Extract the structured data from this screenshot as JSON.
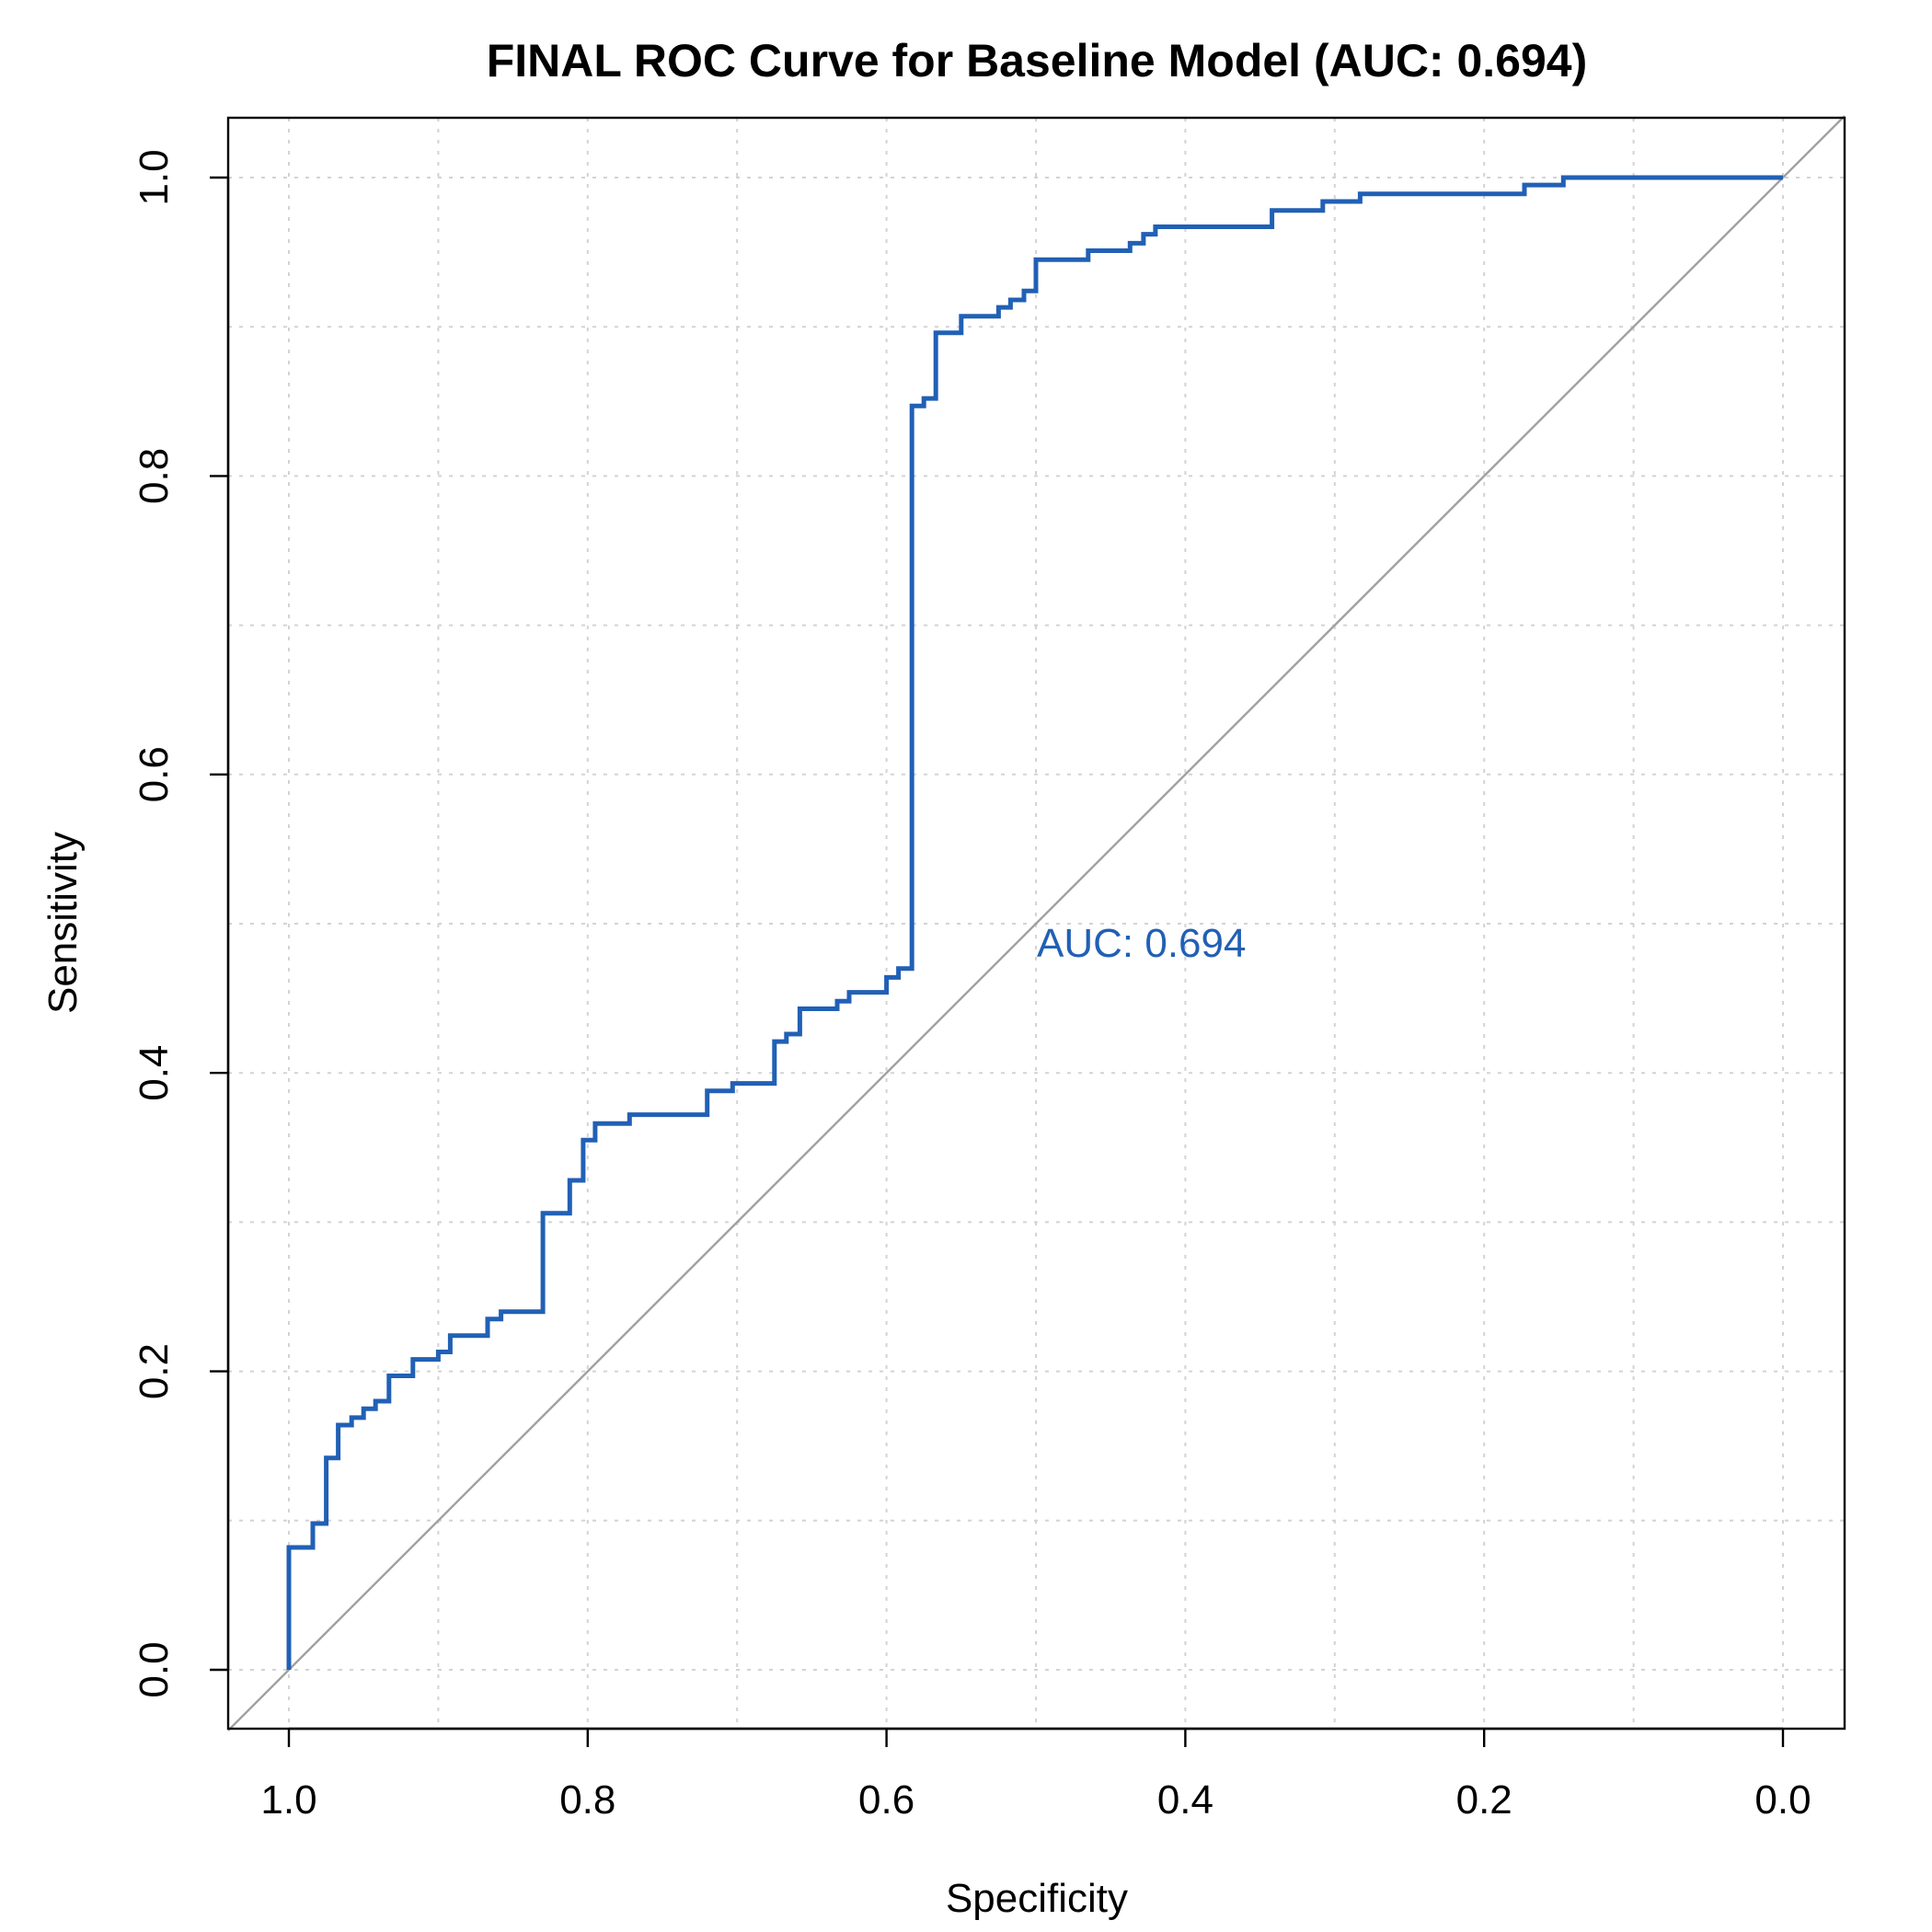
{
  "chart_data": {
    "type": "line",
    "title": "FINAL ROC Curve for Baseline Model (AUC: 0.694)",
    "xlabel": "Specificity",
    "ylabel": "Sensitivity",
    "xlim": [
      1.0,
      0.0
    ],
    "ylim": [
      0.0,
      1.0
    ],
    "x_reversed": true,
    "grid": true,
    "x_ticks": [
      "1.0",
      "0.8",
      "0.6",
      "0.4",
      "0.2",
      "0.0"
    ],
    "y_ticks": [
      "0.0",
      "0.2",
      "0.4",
      "0.6",
      "0.8",
      "1.0"
    ],
    "reference_line": "diagonal",
    "annotation": "AUC: 0.694",
    "colors": {
      "curve": "#2160b5",
      "diagonal": "#a0a0a0",
      "grid": "#d3d3d3"
    },
    "series": [
      {
        "points": [
          [
            1.0,
            0.0
          ],
          [
            1.0,
            0.082
          ],
          [
            0.984,
            0.082
          ],
          [
            0.984,
            0.098
          ],
          [
            0.975,
            0.098
          ],
          [
            0.975,
            0.142
          ],
          [
            0.967,
            0.142
          ],
          [
            0.967,
            0.164
          ],
          [
            0.958,
            0.164
          ],
          [
            0.958,
            0.169
          ],
          [
            0.95,
            0.169
          ],
          [
            0.95,
            0.175
          ],
          [
            0.942,
            0.175
          ],
          [
            0.942,
            0.18
          ],
          [
            0.933,
            0.18
          ],
          [
            0.933,
            0.197
          ],
          [
            0.917,
            0.197
          ],
          [
            0.917,
            0.208
          ],
          [
            0.9,
            0.208
          ],
          [
            0.9,
            0.213
          ],
          [
            0.892,
            0.213
          ],
          [
            0.892,
            0.224
          ],
          [
            0.867,
            0.224
          ],
          [
            0.867,
            0.235
          ],
          [
            0.858,
            0.235
          ],
          [
            0.858,
            0.24
          ],
          [
            0.83,
            0.24
          ],
          [
            0.83,
            0.306
          ],
          [
            0.812,
            0.306
          ],
          [
            0.812,
            0.328
          ],
          [
            0.803,
            0.328
          ],
          [
            0.803,
            0.355
          ],
          [
            0.795,
            0.355
          ],
          [
            0.795,
            0.366
          ],
          [
            0.772,
            0.366
          ],
          [
            0.772,
            0.372
          ],
          [
            0.72,
            0.372
          ],
          [
            0.72,
            0.388
          ],
          [
            0.703,
            0.388
          ],
          [
            0.703,
            0.393
          ],
          [
            0.675,
            0.393
          ],
          [
            0.675,
            0.421
          ],
          [
            0.667,
            0.421
          ],
          [
            0.667,
            0.426
          ],
          [
            0.658,
            0.426
          ],
          [
            0.658,
            0.443
          ],
          [
            0.633,
            0.443
          ],
          [
            0.633,
            0.448
          ],
          [
            0.625,
            0.448
          ],
          [
            0.625,
            0.454
          ],
          [
            0.6,
            0.454
          ],
          [
            0.6,
            0.464
          ],
          [
            0.592,
            0.464
          ],
          [
            0.592,
            0.47
          ],
          [
            0.583,
            0.47
          ],
          [
            0.583,
            0.847
          ],
          [
            0.575,
            0.847
          ],
          [
            0.575,
            0.852
          ],
          [
            0.567,
            0.852
          ],
          [
            0.567,
            0.896
          ],
          [
            0.55,
            0.896
          ],
          [
            0.55,
            0.907
          ],
          [
            0.525,
            0.907
          ],
          [
            0.525,
            0.913
          ],
          [
            0.517,
            0.913
          ],
          [
            0.517,
            0.918
          ],
          [
            0.508,
            0.918
          ],
          [
            0.508,
            0.924
          ],
          [
            0.5,
            0.924
          ],
          [
            0.5,
            0.945
          ],
          [
            0.465,
            0.945
          ],
          [
            0.465,
            0.951
          ],
          [
            0.437,
            0.951
          ],
          [
            0.437,
            0.956
          ],
          [
            0.428,
            0.956
          ],
          [
            0.428,
            0.962
          ],
          [
            0.42,
            0.962
          ],
          [
            0.42,
            0.967
          ],
          [
            0.342,
            0.967
          ],
          [
            0.342,
            0.978
          ],
          [
            0.308,
            0.978
          ],
          [
            0.308,
            0.984
          ],
          [
            0.283,
            0.984
          ],
          [
            0.283,
            0.989
          ],
          [
            0.173,
            0.989
          ],
          [
            0.173,
            0.995
          ],
          [
            0.147,
            0.995
          ],
          [
            0.147,
            1.0
          ],
          [
            0.0,
            1.0
          ]
        ]
      }
    ]
  }
}
